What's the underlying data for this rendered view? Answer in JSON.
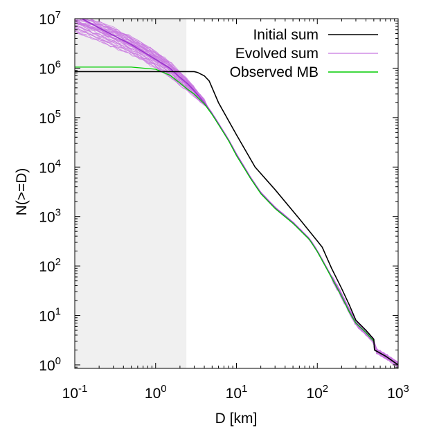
{
  "chart_data": {
    "type": "line",
    "xlabel": "D [km]",
    "ylabel": "N(>=D)",
    "xscale": "log",
    "yscale": "log",
    "xlim": [
      0.1,
      1000
    ],
    "ylim": [
      0.85,
      10000000
    ],
    "x_ticks": [
      {
        "value": 0.1,
        "base": "10",
        "exp": "-1"
      },
      {
        "value": 1,
        "base": "10",
        "exp": "0"
      },
      {
        "value": 10,
        "base": "10",
        "exp": "1"
      },
      {
        "value": 100,
        "base": "10",
        "exp": "2"
      },
      {
        "value": 1000,
        "base": "10",
        "exp": "3"
      }
    ],
    "y_ticks": [
      {
        "value": 1,
        "base": "10",
        "exp": "0"
      },
      {
        "value": 10,
        "base": "10",
        "exp": "1"
      },
      {
        "value": 100,
        "base": "10",
        "exp": "2"
      },
      {
        "value": 1000,
        "base": "10",
        "exp": "3"
      },
      {
        "value": 10000,
        "base": "10",
        "exp": "4"
      },
      {
        "value": 100000,
        "base": "10",
        "exp": "5"
      },
      {
        "value": 1000000,
        "base": "10",
        "exp": "6"
      },
      {
        "value": 10000000,
        "base": "10",
        "exp": "7"
      }
    ],
    "shaded_region": {
      "x": [
        0.1,
        2.4
      ],
      "color": "#f0f0f0"
    },
    "legend_position": "top-right",
    "series": [
      {
        "name": "Initial sum",
        "color": "#000000",
        "x": [
          0.1,
          0.3,
          1,
          2,
          3,
          3.3,
          4,
          4.6,
          6,
          10,
          17,
          30,
          60,
          100,
          115,
          150,
          200,
          250,
          300,
          400,
          500,
          510,
          700,
          1000
        ],
        "y": [
          850000,
          850000,
          850000,
          850000,
          850000,
          820000,
          700000,
          550000,
          200000,
          45000,
          10000,
          3500,
          900,
          320,
          240,
          90,
          35,
          16,
          8,
          5,
          3.3,
          2,
          1.5,
          1
        ]
      },
      {
        "name": "Evolved sum",
        "color": "#c877e0",
        "x": [
          0.1,
          0.2,
          0.5,
          1,
          1.5,
          2,
          2.5,
          3,
          4,
          5,
          6,
          8,
          10,
          15,
          20,
          30,
          50,
          80,
          100,
          150,
          200,
          250,
          300,
          400,
          500,
          510,
          700,
          1000
        ],
        "y": [
          12000000,
          6500000,
          3000000,
          1500000,
          1000000,
          650000,
          480000,
          350000,
          200000,
          120000,
          75000,
          35000,
          18000,
          6000,
          3000,
          1500,
          750,
          350,
          200,
          60,
          25,
          12,
          7,
          4.5,
          3,
          2,
          1.5,
          1
        ],
        "band": [
          {
            "x": 0.1,
            "ylow": 5500000,
            "yhigh": 14000000
          },
          {
            "x": 0.3,
            "ylow": 2600000,
            "yhigh": 7000000
          },
          {
            "x": 0.5,
            "ylow": 1900000,
            "yhigh": 4500000
          },
          {
            "x": 1,
            "ylow": 1000000,
            "yhigh": 2300000
          },
          {
            "x": 1.5,
            "ylow": 650000,
            "yhigh": 1400000
          },
          {
            "x": 2,
            "ylow": 450000,
            "yhigh": 850000
          },
          {
            "x": 2.5,
            "ylow": 340000,
            "yhigh": 600000
          },
          {
            "x": 3,
            "ylow": 270000,
            "yhigh": 420000
          },
          {
            "x": 4,
            "ylow": 180000,
            "yhigh": 230000
          }
        ]
      },
      {
        "name": "Observed MB",
        "color": "#00cc00",
        "x": [
          0.1,
          0.2,
          0.5,
          1,
          1.5,
          2,
          2.5,
          3,
          4,
          5,
          6,
          8,
          10,
          15,
          20,
          30,
          50,
          80,
          100,
          150,
          200,
          250,
          300,
          400,
          500,
          510,
          700,
          1000
        ],
        "y": [
          1050000,
          1050000,
          1050000,
          950000,
          720000,
          500000,
          370000,
          300000,
          190000,
          115000,
          72000,
          34000,
          17000,
          5800,
          2900,
          1450,
          730,
          340,
          195,
          58,
          24,
          11.5,
          7,
          4.5,
          3,
          2,
          1.5,
          1
        ]
      }
    ]
  }
}
